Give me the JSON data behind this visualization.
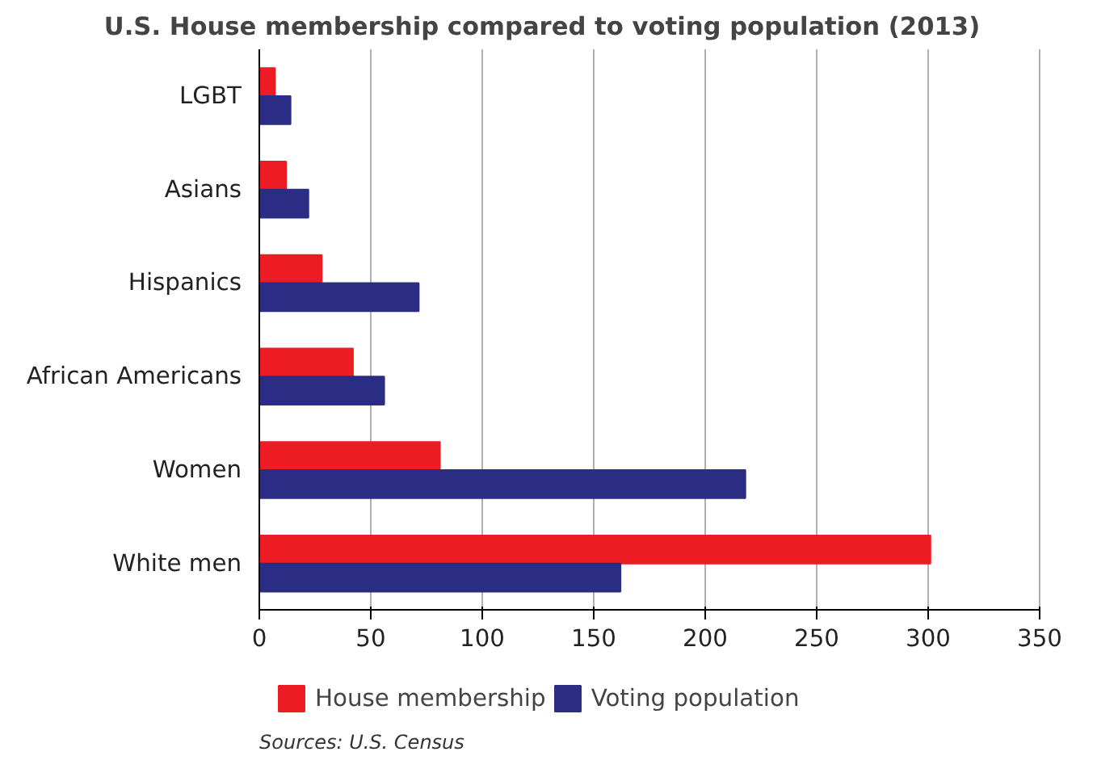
{
  "chart_data": {
    "type": "bar",
    "orientation": "horizontal",
    "title": "U.S. House membership compared to voting population (2013)",
    "categories": [
      "LGBT",
      "Asians",
      "Hispanics",
      "African Americans",
      "Women",
      "White men"
    ],
    "series": [
      {
        "name": "House membership",
        "color": "#ed1c24",
        "values": [
          7,
          12,
          28,
          42,
          81,
          301
        ]
      },
      {
        "name": "Voting population",
        "color": "#2b2d84",
        "values": [
          14,
          22,
          71.5,
          56,
          218,
          162
        ]
      }
    ],
    "xlim": [
      0,
      350
    ],
    "xticks": [
      0,
      50,
      100,
      150,
      200,
      250,
      300,
      350
    ],
    "grid": "x",
    "legend": "bottom",
    "annotations": [
      "Sources: U.S. Census"
    ]
  }
}
